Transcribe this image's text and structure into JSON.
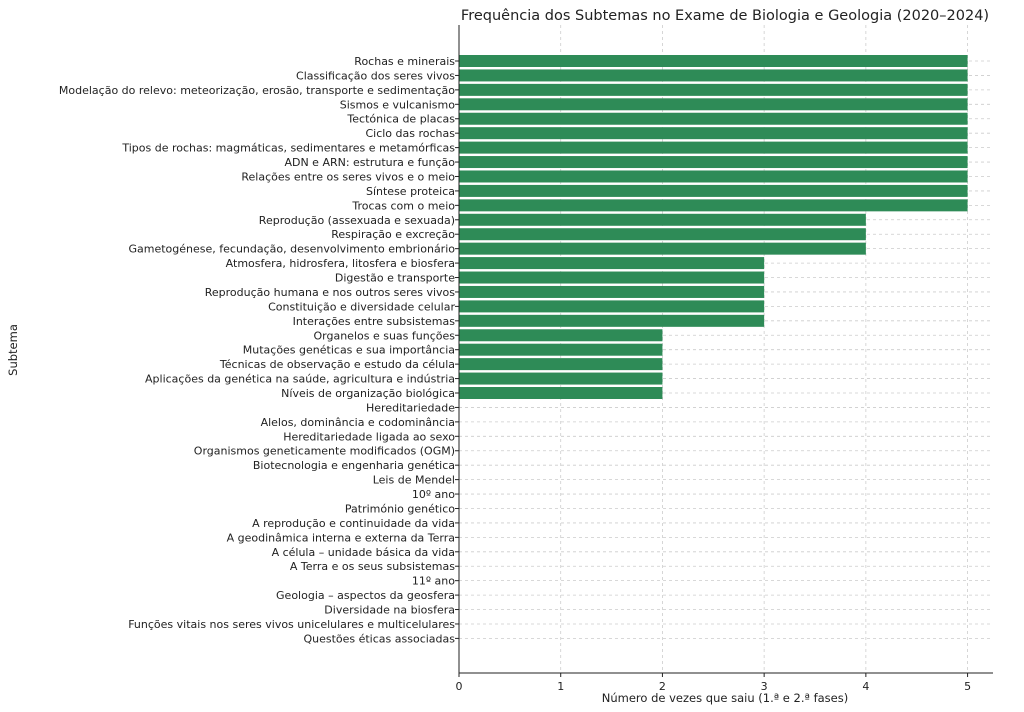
{
  "chart_data": {
    "type": "bar",
    "orientation": "horizontal",
    "title": "Frequência dos Subtemas no Exame de Biologia e Geologia (2020–2024)",
    "xlabel": "Número de vezes que saiu (1.ª e 2.ª fases)",
    "ylabel": "Subtema",
    "xlim": [
      0,
      5.25
    ],
    "xticks": [
      0,
      1,
      2,
      3,
      4,
      5
    ],
    "grid": true,
    "bar_color": "#2e8b57",
    "categories": [
      "Rochas e minerais",
      "Classificação dos seres vivos",
      "Modelação do relevo: meteorização, erosão, transporte e sedimentação",
      "Sismos e vulcanismo",
      "Tectónica de placas",
      "Ciclo das rochas",
      "Tipos de rochas: magmáticas, sedimentares e metamórficas",
      "ADN e ARN: estrutura e função",
      "Relações entre os seres vivos e o meio",
      "Síntese proteica",
      "Trocas com o meio",
      "Reprodução (assexuada e sexuada)",
      "Respiração e excreção",
      "Gametogénese, fecundação, desenvolvimento embrionário",
      "Atmosfera, hidrosfera, litosfera e biosfera",
      "Digestão e transporte",
      "Reprodução humana e nos outros seres vivos",
      "Constituição e diversidade celular",
      "Interações entre subsistemas",
      "Organelos e suas funções",
      "Mutações genéticas e sua importância",
      "Técnicas de observação e estudo da célula",
      "Aplicações da genética na saúde, agricultura e indústria",
      "Níveis de organização biológica",
      "Hereditariedade",
      "Alelos, dominância e codominância",
      "Hereditariedade ligada ao sexo",
      "Organismos geneticamente modificados (OGM)",
      "Biotecnologia e engenharia genética",
      "Leis de Mendel",
      "10º ano",
      "Património genético",
      "A reprodução e continuidade da vida",
      "A geodinâmica interna e externa da Terra",
      "A célula – unidade básica da vida",
      "A Terra e os seus subsistemas",
      "11º ano",
      "Geologia – aspectos da geosfera",
      "Diversidade na biosfera",
      "Funções vitais nos seres vivos unicelulares e multicelulares",
      "Questões éticas associadas"
    ],
    "values": [
      5,
      5,
      5,
      5,
      5,
      5,
      5,
      5,
      5,
      5,
      5,
      4,
      4,
      4,
      3,
      3,
      3,
      3,
      3,
      2,
      2,
      2,
      2,
      2,
      0,
      0,
      0,
      0,
      0,
      0,
      0,
      0,
      0,
      0,
      0,
      0,
      0,
      0,
      0,
      0,
      0
    ]
  }
}
